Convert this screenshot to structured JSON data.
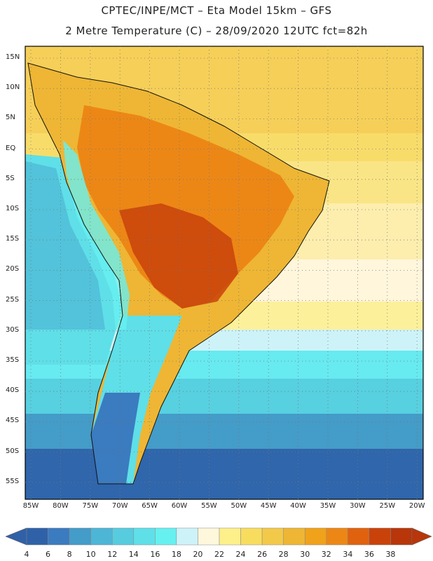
{
  "header": {
    "line1": "CPTEC/INPE/MCT –  Eta Model 15km – GFS",
    "line2": "2 Metre Temperature (C) – 28/09/2020 12UTC fct=82h"
  },
  "axes": {
    "lat_labels": [
      "15N",
      "10N",
      "5N",
      "EQ",
      "5S",
      "10S",
      "15S",
      "20S",
      "25S",
      "30S",
      "35S",
      "40S",
      "45S",
      "50S",
      "55S"
    ],
    "lon_labels": [
      "85W",
      "80W",
      "75W",
      "70W",
      "65W",
      "60W",
      "55W",
      "50W",
      "45W",
      "40W",
      "35W",
      "30W",
      "25W",
      "20W"
    ]
  },
  "colorbar": {
    "labels": [
      "4",
      "6",
      "8",
      "10",
      "12",
      "14",
      "16",
      "18",
      "20",
      "22",
      "24",
      "26",
      "28",
      "30",
      "32",
      "34",
      "36",
      "38"
    ],
    "colors": [
      "#2f61a8",
      "#3b7bbf",
      "#449cc8",
      "#4db6d6",
      "#57ccdf",
      "#5fdfe8",
      "#67f0f0",
      "#cdf3f8",
      "#fff7dc",
      "#fdf08a",
      "#f8dc5e",
      "#f3c94a",
      "#eeb634",
      "#f0a21a",
      "#ec8716",
      "#e0620f",
      "#c9420a",
      "#b8360a"
    ],
    "left_arrow_color": "#3060a8",
    "right_arrow_color": "#b8360a"
  }
}
